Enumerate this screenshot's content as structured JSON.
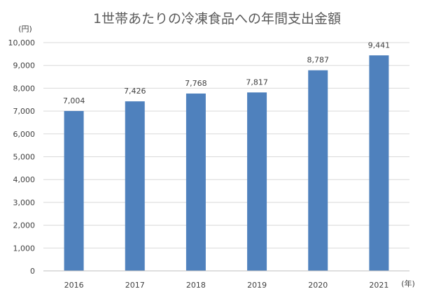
{
  "chart_data": {
    "type": "bar",
    "title": "1世帯あたりの冷凍食品への年間支出金額",
    "y_unit": "(円)",
    "x_unit": "(年)",
    "categories": [
      "2016",
      "2017",
      "2018",
      "2019",
      "2020",
      "2021"
    ],
    "values": [
      7004,
      7426,
      7768,
      7817,
      8787,
      9441
    ],
    "data_labels": [
      "7,004",
      "7,426",
      "7,768",
      "7,817",
      "8,787",
      "9,441"
    ],
    "yticks": [
      0,
      1000,
      2000,
      3000,
      4000,
      5000,
      6000,
      7000,
      8000,
      9000,
      10000
    ],
    "ytick_labels": [
      "0",
      "1,000",
      "2,000",
      "3,000",
      "4,000",
      "5,000",
      "6,000",
      "7,000",
      "8,000",
      "9,000",
      "10,000"
    ],
    "ylim": [
      0,
      10000
    ],
    "grid": true,
    "legend": "none",
    "bar_color": "#4f81bd"
  }
}
